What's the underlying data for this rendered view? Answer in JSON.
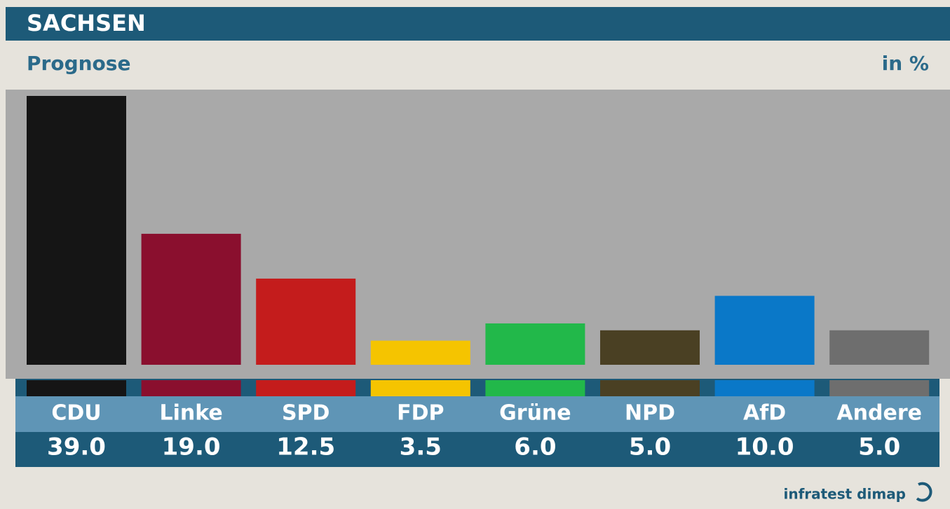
{
  "chart_data": {
    "type": "bar",
    "title": "SACHSEN",
    "subtitle": "Prognose",
    "unit_label": "in %",
    "source": "infratest dimap",
    "categories": [
      "CDU",
      "Linke",
      "SPD",
      "FDP",
      "Grüne",
      "NPD",
      "AfD",
      "Andere"
    ],
    "values": [
      39.0,
      19.0,
      12.5,
      3.5,
      6.0,
      5.0,
      10.0,
      5.0
    ],
    "value_labels": [
      "39.0",
      "19.0",
      "12.5",
      "3.5",
      "6.0",
      "5.0",
      "10.0",
      "5.0"
    ],
    "colors": [
      "#151515",
      "#8a0f2e",
      "#c41c1c",
      "#f5c400",
      "#22b84a",
      "#4a4023",
      "#0a78c8",
      "#6e6e6e"
    ]
  }
}
